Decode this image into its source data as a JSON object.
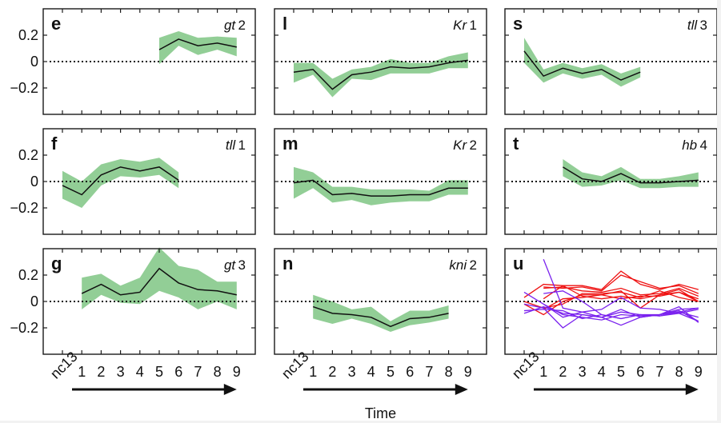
{
  "chart_data": {
    "type": "line",
    "xlabel": "Time",
    "x_ticks": [
      "nc13",
      "1",
      "2",
      "3",
      "4",
      "5",
      "6",
      "7",
      "8",
      "9"
    ],
    "ylim": [
      -0.4,
      0.4
    ],
    "y_ticks": [
      0.2,
      0,
      -0.2
    ],
    "y_tick_labels": [
      "0.2",
      "0",
      "−0.2"
    ],
    "reference_line": 0,
    "colors": {
      "band": "#86c98b",
      "mean": "#111111",
      "red_lines": "#ee1111",
      "purple_lines": "#7a22ee"
    },
    "panels": [
      {
        "id": "e",
        "gene": "gt",
        "gene_num": "2",
        "row": 0,
        "col": 0,
        "x": [
          5,
          6,
          7,
          8,
          9
        ],
        "mean": [
          0.09,
          0.17,
          0.12,
          0.14,
          0.11
        ],
        "lower": [
          -0.02,
          0.12,
          0.05,
          0.09,
          0.04
        ],
        "upper": [
          0.18,
          0.23,
          0.18,
          0.19,
          0.18
        ]
      },
      {
        "id": "l",
        "gene": "Kr",
        "gene_num": "1",
        "row": 0,
        "col": 1,
        "x": [
          0,
          1,
          2,
          3,
          4,
          5,
          6,
          7,
          8,
          9
        ],
        "mean": [
          -0.08,
          -0.06,
          -0.21,
          -0.1,
          -0.08,
          -0.04,
          -0.05,
          -0.04,
          -0.01,
          0.01
        ],
        "lower": [
          -0.16,
          -0.1,
          -0.27,
          -0.13,
          -0.14,
          -0.09,
          -0.09,
          -0.09,
          -0.05,
          -0.05
        ],
        "upper": [
          -0.01,
          -0.01,
          -0.13,
          -0.06,
          -0.04,
          0.02,
          -0.01,
          -0.01,
          0.04,
          0.07
        ]
      },
      {
        "id": "s",
        "gene": "tll",
        "gene_num": "3",
        "row": 0,
        "col": 2,
        "x": [
          0,
          1,
          2,
          3,
          4,
          5,
          6
        ],
        "mean": [
          0.08,
          -0.11,
          -0.05,
          -0.09,
          -0.06,
          -0.14,
          -0.08
        ],
        "lower": [
          -0.01,
          -0.16,
          -0.09,
          -0.13,
          -0.1,
          -0.19,
          -0.12
        ],
        "upper": [
          0.18,
          -0.06,
          -0.01,
          -0.05,
          -0.02,
          -0.09,
          -0.04
        ]
      },
      {
        "id": "f",
        "gene": "tll",
        "gene_num": "1",
        "row": 1,
        "col": 0,
        "x": [
          0,
          1,
          2,
          3,
          4,
          5,
          6
        ],
        "mean": [
          -0.03,
          -0.1,
          0.05,
          0.11,
          0.08,
          0.11,
          0.01
        ],
        "lower": [
          -0.13,
          -0.2,
          -0.03,
          0.04,
          0.03,
          0.05,
          -0.05
        ],
        "upper": [
          0.08,
          0.0,
          0.13,
          0.17,
          0.15,
          0.18,
          0.07
        ]
      },
      {
        "id": "m",
        "gene": "Kr",
        "gene_num": "2",
        "row": 1,
        "col": 1,
        "x": [
          0,
          1,
          2,
          3,
          4,
          5,
          6,
          7,
          8,
          9
        ],
        "mean": [
          -0.01,
          0.01,
          -0.1,
          -0.09,
          -0.11,
          -0.11,
          -0.1,
          -0.1,
          -0.05,
          -0.05
        ],
        "lower": [
          -0.13,
          -0.05,
          -0.16,
          -0.14,
          -0.18,
          -0.16,
          -0.15,
          -0.15,
          -0.1,
          -0.1
        ],
        "upper": [
          0.11,
          0.07,
          -0.04,
          -0.04,
          -0.06,
          -0.06,
          -0.06,
          -0.07,
          0.01,
          0.01
        ]
      },
      {
        "id": "t",
        "gene": "hb",
        "gene_num": "4",
        "row": 1,
        "col": 2,
        "x": [
          2,
          3,
          4,
          5,
          6,
          7,
          8,
          9
        ],
        "mean": [
          0.11,
          0.02,
          0.0,
          0.06,
          -0.01,
          -0.01,
          0.0,
          0.01
        ],
        "lower": [
          0.04,
          -0.04,
          -0.03,
          0.01,
          -0.05,
          -0.05,
          -0.04,
          -0.04
        ],
        "upper": [
          0.17,
          0.07,
          0.04,
          0.11,
          0.02,
          0.02,
          0.04,
          0.07
        ]
      },
      {
        "id": "g",
        "gene": "gt",
        "gene_num": "3",
        "row": 2,
        "col": 0,
        "x": [
          1,
          2,
          3,
          4,
          5,
          6,
          7,
          8,
          9
        ],
        "mean": [
          0.06,
          0.13,
          0.05,
          0.07,
          0.25,
          0.14,
          0.09,
          0.08,
          0.05
        ],
        "lower": [
          -0.06,
          0.05,
          -0.01,
          -0.02,
          0.08,
          0.03,
          -0.06,
          0.0,
          -0.06
        ],
        "upper": [
          0.18,
          0.21,
          0.12,
          0.18,
          0.41,
          0.27,
          0.24,
          0.15,
          0.15
        ]
      },
      {
        "id": "n",
        "gene": "kni",
        "gene_num": "2",
        "row": 2,
        "col": 1,
        "x": [
          1,
          2,
          3,
          4,
          5,
          6,
          7,
          8
        ],
        "mean": [
          -0.04,
          -0.09,
          -0.1,
          -0.12,
          -0.19,
          -0.13,
          -0.12,
          -0.09
        ],
        "lower": [
          -0.13,
          -0.17,
          -0.13,
          -0.17,
          -0.23,
          -0.18,
          -0.16,
          -0.13
        ],
        "upper": [
          0.05,
          0.0,
          -0.06,
          -0.04,
          -0.15,
          -0.07,
          -0.07,
          -0.03
        ]
      },
      {
        "id": "u",
        "gene": "",
        "gene_num": "",
        "row": 2,
        "col": 2,
        "lines": [
          {
            "color": "red",
            "x": [
              0,
              1,
              2,
              3,
              4,
              5,
              6,
              7,
              8,
              9
            ],
            "y": [
              0.03,
              0.13,
              0.12,
              0.12,
              0.09,
              0.23,
              0.13,
              0.09,
              0.13,
              0.09
            ]
          },
          {
            "color": "red",
            "x": [
              1,
              2,
              3,
              4,
              5,
              6,
              7,
              8,
              9
            ],
            "y": [
              0.11,
              0.1,
              0.11,
              0.08,
              0.2,
              0.15,
              0.1,
              0.12,
              0.06
            ]
          },
          {
            "color": "red",
            "x": [
              1,
              2,
              3,
              4,
              5,
              6,
              7,
              8,
              9
            ],
            "y": [
              0.1,
              0.11,
              0.08,
              0.07,
              0.1,
              0.05,
              0.06,
              0.1,
              0.04
            ]
          },
          {
            "color": "red",
            "x": [
              0,
              1,
              2,
              3,
              4,
              5,
              6,
              7,
              8,
              9
            ],
            "y": [
              -0.02,
              -0.1,
              0.0,
              0.05,
              0.05,
              0.08,
              -0.05,
              0.05,
              0.09,
              0.0
            ]
          },
          {
            "color": "red",
            "x": [
              1,
              2,
              3,
              4,
              5,
              6,
              7,
              8,
              9
            ],
            "y": [
              0.02,
              0.12,
              0.04,
              0.02,
              0.04,
              0.02,
              0.05,
              0.07,
              0.02
            ]
          },
          {
            "color": "red",
            "x": [
              0,
              1,
              2,
              3,
              4,
              5,
              6,
              7,
              8,
              9
            ],
            "y": [
              0.0,
              -0.05,
              -0.02,
              0.06,
              0.06,
              0.07,
              0.03,
              0.08,
              0.03,
              0.0
            ]
          },
          {
            "color": "red",
            "x": [
              1,
              2,
              3,
              4,
              5,
              6,
              7,
              8,
              9
            ],
            "y": [
              -0.06,
              0.02,
              0.03,
              0.05,
              0.02,
              0.04,
              0.04,
              0.07,
              0.0
            ]
          },
          {
            "color": "purple",
            "x": [
              1,
              2,
              3,
              4,
              5,
              6,
              7,
              8,
              9
            ],
            "y": [
              0.32,
              -0.05,
              -0.08,
              -0.12,
              -0.08,
              -0.1,
              -0.1,
              -0.04,
              -0.16
            ]
          },
          {
            "color": "purple",
            "x": [
              0,
              1,
              2,
              3,
              4,
              5,
              6,
              7,
              8,
              9
            ],
            "y": [
              0.07,
              -0.02,
              -0.1,
              -0.12,
              -0.14,
              -0.1,
              -0.11,
              -0.1,
              -0.06,
              -0.05
            ]
          },
          {
            "color": "purple",
            "x": [
              0,
              1,
              2,
              3,
              4,
              5,
              6,
              7,
              8,
              9
            ],
            "y": [
              -0.09,
              -0.04,
              -0.09,
              -0.1,
              -0.12,
              -0.18,
              -0.12,
              -0.1,
              -0.07,
              -0.15
            ]
          },
          {
            "color": "purple",
            "x": [
              1,
              2,
              3,
              4,
              5,
              6,
              7,
              8,
              9
            ],
            "y": [
              0.06,
              0.08,
              0.0,
              -0.1,
              -0.13,
              -0.1,
              -0.11,
              -0.09,
              -0.15
            ]
          },
          {
            "color": "purple",
            "x": [
              0,
              1,
              2,
              3,
              4,
              5,
              6,
              7,
              8,
              9
            ],
            "y": [
              -0.02,
              -0.05,
              -0.2,
              -0.1,
              -0.12,
              -0.06,
              -0.12,
              -0.1,
              -0.08,
              -0.05
            ]
          },
          {
            "color": "purple",
            "x": [
              1,
              2,
              3,
              4,
              5,
              6,
              7,
              8,
              9
            ],
            "y": [
              -0.02,
              -0.12,
              -0.08,
              -0.06,
              0.03,
              -0.05,
              -0.06,
              -0.09,
              -0.06
            ]
          },
          {
            "color": "purple",
            "x": [
              0,
              1,
              2,
              3,
              4,
              5,
              6,
              7,
              8,
              9
            ],
            "y": [
              -0.07,
              -0.06,
              -0.07,
              -0.13,
              -0.1,
              -0.13,
              -0.1,
              -0.11,
              -0.08,
              -0.12
            ]
          }
        ]
      }
    ]
  }
}
